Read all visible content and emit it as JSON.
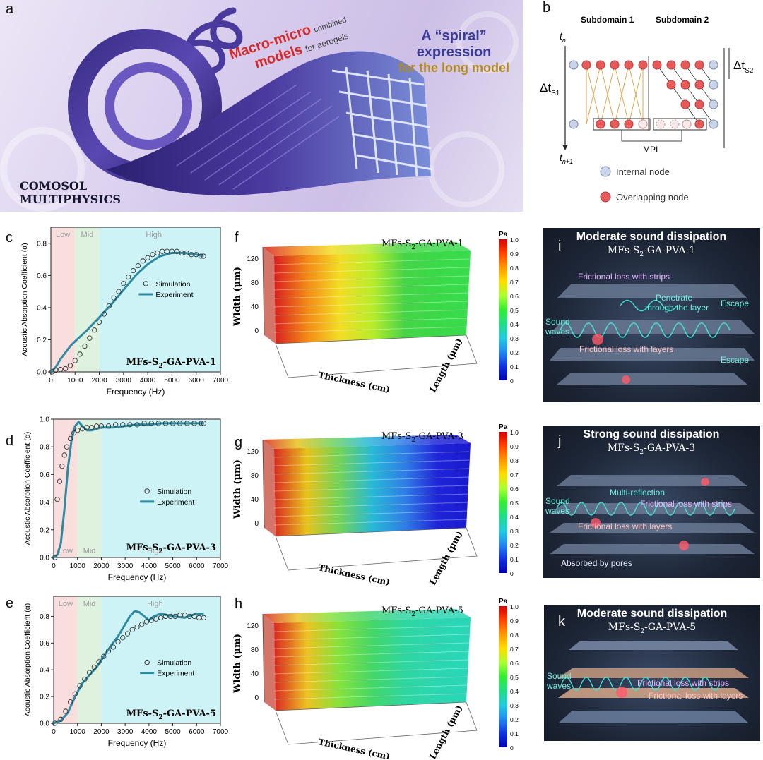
{
  "panel_labels": {
    "a": "a",
    "b": "b",
    "c": "c",
    "d": "d",
    "e": "e",
    "f": "f",
    "g": "g",
    "h": "h",
    "i": "i",
    "j": "j",
    "k": "k"
  },
  "panel_a": {
    "spiral_title_1": "A “spiral” expression",
    "spiral_title_2": "for the long model",
    "macro_1": "Macro-micro",
    "macro_combined": "combined",
    "macro_2": "models",
    "macro_for": "for aerogels",
    "brand_1": "COMOSOL",
    "brand_2": "MULTIPHYSICS"
  },
  "panel_b": {
    "subdomain1": "Subdomain 1",
    "subdomain2": "Subdomain 2",
    "tn": "t",
    "tn_sub": "n",
    "tn1": "t",
    "tn1_sub": "n+1",
    "dts1": "Δt",
    "dts1_sub": "S1",
    "dts2": "Δt",
    "dts2_sub": "S2",
    "mpi": "MPI",
    "legend_internal": "Internal node",
    "legend_overlap": "Overlapping node"
  },
  "chart_data": [
    {
      "id": "c",
      "type": "line",
      "xlabel": "Frequency (Hz)",
      "ylabel": "Acoustic Absorption Coefficient (α)",
      "xlim": [
        0,
        7000
      ],
      "ylim": [
        0,
        0.9
      ],
      "xticks": [
        "0",
        "1000",
        "2000",
        "3000",
        "4000",
        "5000",
        "6000",
        "7000"
      ],
      "yticks": [
        "0.0",
        "0.2",
        "0.4",
        "0.6",
        "0.8"
      ],
      "regions": [
        {
          "label": "Low",
          "from": 0,
          "to": 1000,
          "color": "#f9dede"
        },
        {
          "label": "Mid",
          "from": 1000,
          "to": 2000,
          "color": "#dff1df"
        },
        {
          "label": "High",
          "from": 2000,
          "to": 7000,
          "color": "#cdf3f6"
        }
      ],
      "region_label_pos": "top",
      "sample": "MFs-S",
      "sample_sub": "2",
      "sample_rest": "-GA-PVA-1",
      "legend": {
        "sim": "Simulation",
        "exp": "Experiment"
      },
      "series": [
        {
          "name": "Simulation",
          "style": "markers",
          "x": [
            50,
            200,
            400,
            600,
            800,
            1000,
            1200,
            1400,
            1600,
            1800,
            2000,
            2200,
            2400,
            2600,
            2800,
            3000,
            3200,
            3400,
            3600,
            3800,
            4000,
            4200,
            4400,
            4600,
            4800,
            5000,
            5200,
            5400,
            5600,
            5800,
            6000,
            6200,
            6300
          ],
          "y": [
            0.0,
            0.01,
            0.015,
            0.02,
            0.04,
            0.07,
            0.11,
            0.16,
            0.21,
            0.26,
            0.31,
            0.36,
            0.41,
            0.46,
            0.5,
            0.55,
            0.59,
            0.63,
            0.66,
            0.69,
            0.71,
            0.73,
            0.74,
            0.75,
            0.75,
            0.75,
            0.75,
            0.74,
            0.74,
            0.73,
            0.73,
            0.72,
            0.72
          ]
        },
        {
          "name": "Experiment",
          "style": "line",
          "x": [
            0,
            200,
            400,
            600,
            800,
            1000,
            1500,
            2000,
            2500,
            3000,
            3500,
            4000,
            4500,
            5000,
            5500,
            6000,
            6300
          ],
          "y": [
            0.0,
            0.03,
            0.08,
            0.12,
            0.16,
            0.19,
            0.26,
            0.34,
            0.42,
            0.51,
            0.6,
            0.67,
            0.72,
            0.74,
            0.74,
            0.73,
            0.72
          ]
        }
      ]
    },
    {
      "id": "d",
      "type": "line",
      "xlabel": "Frequency (Hz)",
      "ylabel": "Acoustic Absorption Coefficient (α)",
      "xlim": [
        0,
        7000
      ],
      "ylim": [
        0,
        1.0
      ],
      "xticks": [
        "0",
        "1000",
        "2000",
        "3000",
        "4000",
        "5000",
        "6000",
        "7000"
      ],
      "yticks": [
        "0.0",
        "0.2",
        "0.4",
        "0.6",
        "0.8",
        "1.0"
      ],
      "regions": [
        {
          "label": "Low",
          "from": 0,
          "to": 1000,
          "color": "#f9dede"
        },
        {
          "label": "Mid",
          "from": 1000,
          "to": 2000,
          "color": "#dff1df"
        },
        {
          "label": "High",
          "from": 2000,
          "to": 7000,
          "color": "#cdf3f6"
        }
      ],
      "region_label_pos": "bottom",
      "sample": "MFs-S",
      "sample_sub": "2",
      "sample_rest": "-GA-PVA-3",
      "legend": {
        "sim": "Simulation",
        "exp": "Experiment"
      },
      "series": [
        {
          "name": "Simulation",
          "style": "markers",
          "x": [
            50,
            150,
            250,
            350,
            450,
            550,
            700,
            850,
            1000,
            1200,
            1400,
            1600,
            1800,
            2000,
            2300,
            2600,
            2900,
            3200,
            3500,
            3800,
            4100,
            4400,
            4700,
            5000,
            5300,
            5600,
            5900,
            6200,
            6300
          ],
          "y": [
            0.0,
            0.42,
            0.55,
            0.66,
            0.74,
            0.8,
            0.86,
            0.9,
            0.92,
            0.93,
            0.94,
            0.94,
            0.95,
            0.95,
            0.95,
            0.96,
            0.96,
            0.96,
            0.96,
            0.97,
            0.97,
            0.97,
            0.97,
            0.97,
            0.97,
            0.97,
            0.97,
            0.97,
            0.97
          ]
        },
        {
          "name": "Experiment",
          "style": "line",
          "x": [
            0,
            150,
            300,
            450,
            600,
            750,
            900,
            1050,
            1200,
            1400,
            1600,
            1800,
            2000,
            2500,
            3000,
            3500,
            4000,
            4500,
            5000,
            5500,
            6000,
            6300
          ],
          "y": [
            0.0,
            0.02,
            0.1,
            0.35,
            0.65,
            0.85,
            0.95,
            0.98,
            0.95,
            0.92,
            0.92,
            0.93,
            0.94,
            0.94,
            0.95,
            0.96,
            0.96,
            0.97,
            0.97,
            0.97,
            0.97,
            0.97
          ]
        }
      ]
    },
    {
      "id": "e",
      "type": "line",
      "xlabel": "Frequency (Hz)",
      "ylabel": "Acoustic Absorption Coefficient (α)",
      "xlim": [
        0,
        7000
      ],
      "ylim": [
        0,
        0.95
      ],
      "xticks": [
        "0",
        "1000",
        "2000",
        "3000",
        "4000",
        "5000",
        "6000",
        "7000"
      ],
      "yticks": [
        "0.0",
        "0.2",
        "0.4",
        "0.6",
        "0.8"
      ],
      "regions": [
        {
          "label": "Low",
          "from": 0,
          "to": 1000,
          "color": "#f9dede"
        },
        {
          "label": "Mid",
          "from": 1000,
          "to": 2000,
          "color": "#dff1df"
        },
        {
          "label": "High",
          "from": 2000,
          "to": 7000,
          "color": "#cdf3f6"
        }
      ],
      "region_label_pos": "top",
      "sample": "MFs-S",
      "sample_sub": "2",
      "sample_rest": "-GA-PVA-5",
      "legend": {
        "sim": "Simulation",
        "exp": "Experiment"
      },
      "series": [
        {
          "name": "Simulation",
          "style": "markers",
          "x": [
            50,
            300,
            500,
            700,
            900,
            1100,
            1300,
            1500,
            1700,
            1900,
            2100,
            2300,
            2500,
            2700,
            2900,
            3100,
            3300,
            3500,
            3700,
            3900,
            4100,
            4300,
            4500,
            4700,
            4900,
            5100,
            5300,
            5500,
            5700,
            5900,
            6100,
            6300
          ],
          "y": [
            0.0,
            0.03,
            0.09,
            0.16,
            0.22,
            0.28,
            0.33,
            0.38,
            0.42,
            0.46,
            0.5,
            0.54,
            0.57,
            0.61,
            0.64,
            0.67,
            0.7,
            0.72,
            0.74,
            0.76,
            0.77,
            0.78,
            0.79,
            0.8,
            0.8,
            0.8,
            0.81,
            0.81,
            0.8,
            0.8,
            0.79,
            0.79
          ]
        },
        {
          "name": "Experiment",
          "style": "line",
          "x": [
            0,
            300,
            600,
            900,
            1200,
            1500,
            1800,
            2100,
            2400,
            2700,
            3000,
            3200,
            3400,
            3600,
            3800,
            4000,
            4200,
            4500,
            5000,
            5500,
            6000,
            6300
          ],
          "y": [
            0.0,
            0.02,
            0.08,
            0.2,
            0.3,
            0.36,
            0.42,
            0.5,
            0.58,
            0.65,
            0.74,
            0.8,
            0.84,
            0.83,
            0.8,
            0.77,
            0.8,
            0.82,
            0.8,
            0.79,
            0.82,
            0.82
          ]
        }
      ]
    }
  ],
  "contours": [
    {
      "id": "f",
      "title_a": "MFs-S",
      "title_sub": "2",
      "title_b": "-GA-PVA-1",
      "width_label": "Width (μm)",
      "thickness_label": "Thickness (cm)",
      "length_label": "Length (μm)",
      "width_ticks": [
        "120",
        "80",
        "40",
        "0"
      ],
      "gradient": [
        "#d81f1f",
        "#f28a16",
        "#f2dd25",
        "#b8ec2b",
        "#45d447",
        "#3bd94a",
        "#38dc4d"
      ]
    },
    {
      "id": "g",
      "title_a": "MFs-S",
      "title_sub": "2",
      "title_b": "-GA-PVA-3",
      "width_label": "Width (μm)",
      "thickness_label": "Thickness (cm)",
      "length_label": "Length (μm)",
      "width_ticks": [
        "120",
        "80",
        "40",
        "0"
      ],
      "gradient": [
        "#d82a1f",
        "#e6c41c",
        "#70d35a",
        "#27b9d6",
        "#2f7ee6",
        "#1f24d6",
        "#1a1ad0"
      ]
    },
    {
      "id": "h",
      "title_a": "MFs-S",
      "title_sub": "2",
      "title_b": "-GA-PVA-5",
      "width_label": "Width (μm)",
      "thickness_label": "Thickness (cm)",
      "length_label": "Length (μm)",
      "width_ticks": [
        "120",
        "80",
        "40",
        "0"
      ],
      "gradient": [
        "#d8261f",
        "#ecc322",
        "#84e23c",
        "#44d767",
        "#2fd6a0",
        "#2cd6b1",
        "#2ad6b8"
      ]
    }
  ],
  "colorbar": {
    "unit": "Pa",
    "ticks": [
      "1.0",
      "0.9",
      "0.8",
      "0.7",
      "0.6",
      "0.5",
      "0.4",
      "0.3",
      "0.2",
      "0.1",
      "0"
    ]
  },
  "cartoons": [
    {
      "id": "i",
      "title": "Moderate sound dissipation",
      "sample_a": "MFs-S",
      "sample_sub": "2",
      "sample_b": "-GA-PVA-1",
      "labels": [
        "Frictional loss with strips",
        "Penetrate",
        "through the layer",
        "Escape",
        "Sound",
        "waves",
        "Frictional loss with layers",
        "Escape"
      ]
    },
    {
      "id": "j",
      "title": "Strong sound dissipation",
      "sample_a": "MFs-S",
      "sample_sub": "2",
      "sample_b": "-GA-PVA-3",
      "labels": [
        "Multi-reflection",
        "Frictional loss with strips",
        "Sound",
        "waves",
        "Frictional loss with layers",
        "Absorbed by pores"
      ]
    },
    {
      "id": "k",
      "title": "Moderate sound dissipation",
      "sample_a": "MFs-S",
      "sample_sub": "2",
      "sample_b": "-GA-PVA-5",
      "labels": [
        "Sound",
        "waves",
        "Frictional loss with strips",
        "Frictional loss with layers"
      ]
    }
  ]
}
